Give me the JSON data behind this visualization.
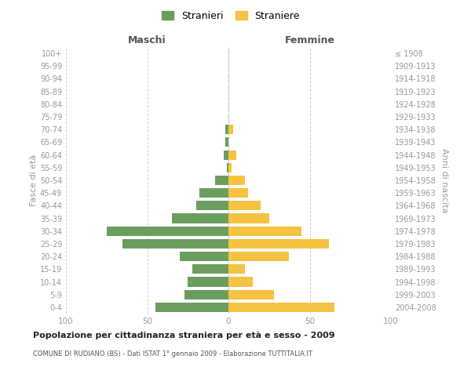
{
  "age_groups": [
    "0-4",
    "5-9",
    "10-14",
    "15-19",
    "20-24",
    "25-29",
    "30-34",
    "35-39",
    "40-44",
    "45-49",
    "50-54",
    "55-59",
    "60-64",
    "65-69",
    "70-74",
    "75-79",
    "80-84",
    "85-89",
    "90-94",
    "95-99",
    "100+"
  ],
  "birth_years": [
    "2004-2008",
    "1999-2003",
    "1994-1998",
    "1989-1993",
    "1984-1988",
    "1979-1983",
    "1974-1978",
    "1969-1973",
    "1964-1968",
    "1959-1963",
    "1954-1958",
    "1949-1953",
    "1944-1948",
    "1939-1943",
    "1934-1938",
    "1929-1933",
    "1924-1928",
    "1919-1923",
    "1914-1918",
    "1909-1913",
    "≤ 1908"
  ],
  "maschi": [
    45,
    27,
    25,
    22,
    30,
    65,
    75,
    35,
    20,
    18,
    8,
    1,
    3,
    2,
    2,
    0,
    0,
    0,
    0,
    0,
    0
  ],
  "femmine": [
    65,
    28,
    15,
    10,
    37,
    62,
    45,
    25,
    20,
    12,
    10,
    2,
    5,
    0,
    3,
    0,
    0,
    0,
    0,
    0,
    0
  ],
  "maschi_color": "#6b9e5e",
  "femmine_color": "#f5c242",
  "background_color": "#ffffff",
  "grid_color": "#cccccc",
  "title": "Popolazione per cittadinanza straniera per età e sesso - 2009",
  "subtitle": "COMUNE DI RUDIANO (BS) - Dati ISTAT 1° gennaio 2009 - Elaborazione TUTTITALIA.IT",
  "header_left": "Maschi",
  "header_right": "Femmine",
  "ylabel_left": "Fasce di età",
  "ylabel_right": "Anni di nascita",
  "legend_stranieri": "Stranieri",
  "legend_straniere": "Straniere",
  "xlim": 100,
  "tick_color": "#999999",
  "label_color": "#555555",
  "title_color": "#222222",
  "subtitle_color": "#555555",
  "bar_height": 0.75
}
